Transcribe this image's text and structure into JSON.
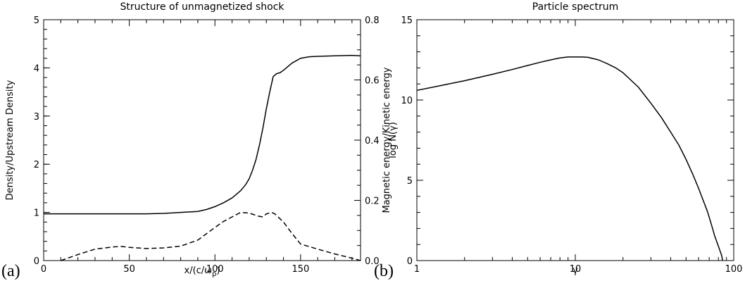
{
  "chart_data": [
    {
      "type": "line",
      "panel_label": "(a)",
      "title": "Structure of unmagnetized shock",
      "xlabel": "x/(c/ω",
      "xlabel_sub": "p",
      "xlabel_close": ")",
      "ylabel": "Density/Upstream Density",
      "y2label": "Magnetic energy/Kinetic energy",
      "xlim": [
        0,
        185
      ],
      "ylim": [
        0,
        5
      ],
      "y2lim": [
        0,
        0.8
      ],
      "xticks": [
        "0",
        "50",
        "100",
        "150"
      ],
      "xtick_values": [
        0,
        50,
        100,
        150
      ],
      "yticks": [
        "0",
        "1",
        "2",
        "3",
        "4",
        "5"
      ],
      "ytick_values": [
        0,
        1,
        2,
        3,
        4,
        5
      ],
      "y2ticks": [
        "0.0",
        "0.2",
        "0.4",
        "0.6",
        "0.8"
      ],
      "y2tick_values": [
        0,
        0.2,
        0.4,
        0.6,
        0.8
      ],
      "series": [
        {
          "style": "solid",
          "axis": "left",
          "x": [
            0,
            20,
            40,
            60,
            70,
            80,
            90,
            95,
            100,
            105,
            110,
            115,
            118,
            120,
            122,
            124,
            126,
            128,
            130,
            132,
            134,
            136,
            138,
            140,
            145,
            150,
            155,
            160,
            170,
            180,
            185
          ],
          "y": [
            0.97,
            0.97,
            0.97,
            0.97,
            0.98,
            1.0,
            1.02,
            1.06,
            1.12,
            1.2,
            1.3,
            1.45,
            1.58,
            1.7,
            1.88,
            2.1,
            2.4,
            2.75,
            3.15,
            3.5,
            3.82,
            3.88,
            3.9,
            3.95,
            4.1,
            4.2,
            4.23,
            4.24,
            4.25,
            4.26,
            4.25
          ]
        },
        {
          "style": "dashed",
          "axis": "right",
          "x": [
            10,
            20,
            30,
            40,
            45,
            50,
            60,
            70,
            80,
            90,
            100,
            105,
            110,
            115,
            120,
            125,
            128,
            130,
            133,
            135,
            140,
            145,
            150,
            160,
            170,
            180,
            185
          ],
          "y": [
            0.0,
            0.02,
            0.038,
            0.045,
            0.047,
            0.044,
            0.04,
            0.042,
            0.048,
            0.068,
            0.11,
            0.13,
            0.145,
            0.16,
            0.158,
            0.148,
            0.145,
            0.155,
            0.16,
            0.155,
            0.128,
            0.09,
            0.055,
            0.038,
            0.022,
            0.008,
            0.0
          ]
        }
      ]
    },
    {
      "type": "line",
      "panel_label": "(b)",
      "title": "Particle spectrum",
      "xlabel": "γ",
      "ylabel": "log N(γ)",
      "xscale": "log",
      "xlim": [
        1,
        100
      ],
      "ylim": [
        0,
        15
      ],
      "xticks": [
        "1",
        "10",
        "100"
      ],
      "xtick_values": [
        1,
        10,
        100
      ],
      "yticks": [
        "0",
        "5",
        "10",
        "15"
      ],
      "ytick_values": [
        0,
        5,
        10,
        15
      ],
      "series": [
        {
          "style": "solid",
          "x": [
            1,
            1.5,
            2,
            3,
            4,
            5,
            6,
            7,
            8,
            9,
            10,
            11,
            12,
            14,
            16,
            18,
            20,
            25,
            30,
            35,
            40,
            45,
            50,
            55,
            60,
            65,
            68,
            70,
            72,
            74,
            76,
            78,
            80,
            82,
            84,
            85
          ],
          "y": [
            10.6,
            10.95,
            11.2,
            11.6,
            11.9,
            12.15,
            12.35,
            12.5,
            12.62,
            12.68,
            12.68,
            12.68,
            12.66,
            12.5,
            12.25,
            12.0,
            11.7,
            10.8,
            9.8,
            8.9,
            8.0,
            7.2,
            6.3,
            5.4,
            4.5,
            3.6,
            3.1,
            2.7,
            2.3,
            1.9,
            1.5,
            1.2,
            0.9,
            0.6,
            0.3,
            0.0
          ]
        }
      ]
    }
  ]
}
